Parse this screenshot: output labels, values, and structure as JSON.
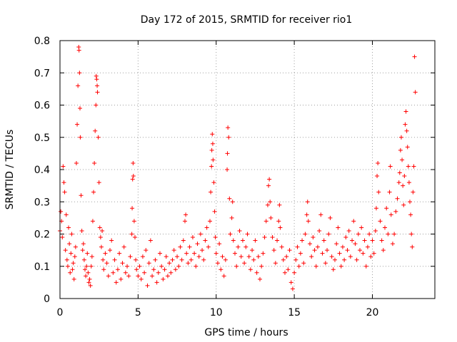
{
  "chart_data": {
    "type": "scatter",
    "title": "Day 172 of 2015, SRMTID for receiver rio1",
    "xlabel": "GPS time / hours",
    "ylabel": "SRMTID / TECUs",
    "xlim": [
      0,
      24
    ],
    "ylim": [
      0,
      0.8
    ],
    "xticks": [
      0,
      5,
      10,
      15,
      20
    ],
    "xtick_labels": [
      "0",
      "5",
      "10",
      "15",
      "20"
    ],
    "yticks": [
      0,
      0.1,
      0.2,
      0.3,
      0.4,
      0.5,
      0.6,
      0.7,
      0.8
    ],
    "ytick_labels": [
      "0",
      "0.1",
      "0.2",
      "0.3",
      "0.4",
      "0.5",
      "0.6",
      "0.7",
      "0.8"
    ],
    "grid": true,
    "marker": "+",
    "color": "#ff0000",
    "series": [
      {
        "name": "rio1",
        "points": [
          [
            0.0,
            0.21
          ],
          [
            0.05,
            0.27
          ],
          [
            0.1,
            0.24
          ],
          [
            0.15,
            0.19
          ],
          [
            0.2,
            0.41
          ],
          [
            0.25,
            0.36
          ],
          [
            0.3,
            0.33
          ],
          [
            0.35,
            0.15
          ],
          [
            0.4,
            0.26
          ],
          [
            0.45,
            0.12
          ],
          [
            0.5,
            0.1
          ],
          [
            0.55,
            0.22
          ],
          [
            0.6,
            0.17
          ],
          [
            0.65,
            0.08
          ],
          [
            0.7,
            0.14
          ],
          [
            0.75,
            0.2
          ],
          [
            0.8,
            0.09
          ],
          [
            0.85,
            0.11
          ],
          [
            0.9,
            0.06
          ],
          [
            0.95,
            0.13
          ],
          [
            1.0,
            0.16
          ],
          [
            1.05,
            0.42
          ],
          [
            1.1,
            0.54
          ],
          [
            1.15,
            0.66
          ],
          [
            1.2,
            0.78
          ],
          [
            1.22,
            0.77
          ],
          [
            1.25,
            0.7
          ],
          [
            1.28,
            0.59
          ],
          [
            1.3,
            0.5
          ],
          [
            1.35,
            0.32
          ],
          [
            1.4,
            0.21
          ],
          [
            1.45,
            0.15
          ],
          [
            1.5,
            0.17
          ],
          [
            1.55,
            0.12
          ],
          [
            1.6,
            0.09
          ],
          [
            1.65,
            0.07
          ],
          [
            1.7,
            0.1
          ],
          [
            1.75,
            0.14
          ],
          [
            1.8,
            0.08
          ],
          [
            1.85,
            0.05
          ],
          [
            1.9,
            0.06
          ],
          [
            1.95,
            0.04
          ],
          [
            2.0,
            0.1
          ],
          [
            2.05,
            0.13
          ],
          [
            2.1,
            0.24
          ],
          [
            2.15,
            0.33
          ],
          [
            2.2,
            0.42
          ],
          [
            2.25,
            0.52
          ],
          [
            2.3,
            0.6
          ],
          [
            2.32,
            0.69
          ],
          [
            2.35,
            0.68
          ],
          [
            2.38,
            0.66
          ],
          [
            2.4,
            0.64
          ],
          [
            2.45,
            0.5
          ],
          [
            2.5,
            0.36
          ],
          [
            2.55,
            0.22
          ],
          [
            2.6,
            0.19
          ],
          [
            2.65,
            0.16
          ],
          [
            2.7,
            0.21
          ],
          [
            2.75,
            0.12
          ],
          [
            2.8,
            0.09
          ],
          [
            2.9,
            0.14
          ],
          [
            3.0,
            0.11
          ],
          [
            3.1,
            0.07
          ],
          [
            3.2,
            0.15
          ],
          [
            3.3,
            0.18
          ],
          [
            3.4,
            0.08
          ],
          [
            3.5,
            0.12
          ],
          [
            3.6,
            0.05
          ],
          [
            3.7,
            0.09
          ],
          [
            3.8,
            0.14
          ],
          [
            3.9,
            0.06
          ],
          [
            4.0,
            0.11
          ],
          [
            4.1,
            0.16
          ],
          [
            4.2,
            0.08
          ],
          [
            4.3,
            0.1
          ],
          [
            4.4,
            0.07
          ],
          [
            4.5,
            0.13
          ],
          [
            4.6,
            0.2
          ],
          [
            4.62,
            0.28
          ],
          [
            4.65,
            0.37
          ],
          [
            4.68,
            0.42
          ],
          [
            4.7,
            0.38
          ],
          [
            4.75,
            0.24
          ],
          [
            4.8,
            0.19
          ],
          [
            4.85,
            0.12
          ],
          [
            4.9,
            0.09
          ],
          [
            5.0,
            0.07
          ],
          [
            5.1,
            0.1
          ],
          [
            5.2,
            0.06
          ],
          [
            5.3,
            0.13
          ],
          [
            5.4,
            0.08
          ],
          [
            5.5,
            0.15
          ],
          [
            5.6,
            0.04
          ],
          [
            5.7,
            0.11
          ],
          [
            5.8,
            0.18
          ],
          [
            5.9,
            0.07
          ],
          [
            6.0,
            0.09
          ],
          [
            6.1,
            0.12
          ],
          [
            6.2,
            0.05
          ],
          [
            6.3,
            0.08
          ],
          [
            6.4,
            0.14
          ],
          [
            6.5,
            0.1
          ],
          [
            6.6,
            0.06
          ],
          [
            6.7,
            0.09
          ],
          [
            6.8,
            0.13
          ],
          [
            6.9,
            0.07
          ],
          [
            7.0,
            0.11
          ],
          [
            7.1,
            0.08
          ],
          [
            7.2,
            0.12
          ],
          [
            7.3,
            0.15
          ],
          [
            7.4,
            0.09
          ],
          [
            7.5,
            0.13
          ],
          [
            7.6,
            0.1
          ],
          [
            7.7,
            0.16
          ],
          [
            7.8,
            0.12
          ],
          [
            7.9,
            0.18
          ],
          [
            8.0,
            0.24
          ],
          [
            8.05,
            0.26
          ],
          [
            8.1,
            0.14
          ],
          [
            8.2,
            0.11
          ],
          [
            8.3,
            0.16
          ],
          [
            8.4,
            0.12
          ],
          [
            8.5,
            0.19
          ],
          [
            8.6,
            0.14
          ],
          [
            8.7,
            0.1
          ],
          [
            8.8,
            0.17
          ],
          [
            8.9,
            0.13
          ],
          [
            9.0,
            0.2
          ],
          [
            9.1,
            0.15
          ],
          [
            9.2,
            0.12
          ],
          [
            9.3,
            0.18
          ],
          [
            9.4,
            0.22
          ],
          [
            9.5,
            0.16
          ],
          [
            9.6,
            0.24
          ],
          [
            9.65,
            0.33
          ],
          [
            9.7,
            0.41
          ],
          [
            9.72,
            0.46
          ],
          [
            9.75,
            0.51
          ],
          [
            9.78,
            0.48
          ],
          [
            9.8,
            0.43
          ],
          [
            9.85,
            0.36
          ],
          [
            9.9,
            0.27
          ],
          [
            9.95,
            0.19
          ],
          [
            10.0,
            0.14
          ],
          [
            10.1,
            0.11
          ],
          [
            10.2,
            0.17
          ],
          [
            10.3,
            0.09
          ],
          [
            10.4,
            0.13
          ],
          [
            10.5,
            0.07
          ],
          [
            10.6,
            0.12
          ],
          [
            10.7,
            0.4
          ],
          [
            10.72,
            0.45
          ],
          [
            10.75,
            0.53
          ],
          [
            10.8,
            0.5
          ],
          [
            10.85,
            0.31
          ],
          [
            10.9,
            0.2
          ],
          [
            11.0,
            0.25
          ],
          [
            11.05,
            0.3
          ],
          [
            11.1,
            0.18
          ],
          [
            11.2,
            0.14
          ],
          [
            11.3,
            0.1
          ],
          [
            11.4,
            0.16
          ],
          [
            11.5,
            0.21
          ],
          [
            11.6,
            0.13
          ],
          [
            11.7,
            0.18
          ],
          [
            11.8,
            0.11
          ],
          [
            11.9,
            0.16
          ],
          [
            12.0,
            0.2
          ],
          [
            12.1,
            0.13
          ],
          [
            12.2,
            0.09
          ],
          [
            12.3,
            0.15
          ],
          [
            12.4,
            0.12
          ],
          [
            12.5,
            0.18
          ],
          [
            12.6,
            0.08
          ],
          [
            12.7,
            0.13
          ],
          [
            12.8,
            0.06
          ],
          [
            12.9,
            0.1
          ],
          [
            13.0,
            0.14
          ],
          [
            13.1,
            0.19
          ],
          [
            13.2,
            0.24
          ],
          [
            13.3,
            0.29
          ],
          [
            13.35,
            0.35
          ],
          [
            13.4,
            0.37
          ],
          [
            13.45,
            0.3
          ],
          [
            13.5,
            0.25
          ],
          [
            13.6,
            0.19
          ],
          [
            13.7,
            0.15
          ],
          [
            13.8,
            0.11
          ],
          [
            13.9,
            0.18
          ],
          [
            14.0,
            0.24
          ],
          [
            14.05,
            0.29
          ],
          [
            14.1,
            0.22
          ],
          [
            14.2,
            0.16
          ],
          [
            14.3,
            0.12
          ],
          [
            14.4,
            0.08
          ],
          [
            14.5,
            0.13
          ],
          [
            14.6,
            0.09
          ],
          [
            14.7,
            0.15
          ],
          [
            14.8,
            0.05
          ],
          [
            14.9,
            0.03
          ],
          [
            15.0,
            0.08
          ],
          [
            15.1,
            0.12
          ],
          [
            15.2,
            0.16
          ],
          [
            15.3,
            0.1
          ],
          [
            15.4,
            0.14
          ],
          [
            15.5,
            0.18
          ],
          [
            15.6,
            0.11
          ],
          [
            15.7,
            0.2
          ],
          [
            15.8,
            0.26
          ],
          [
            15.85,
            0.3
          ],
          [
            15.9,
            0.24
          ],
          [
            16.0,
            0.17
          ],
          [
            16.1,
            0.13
          ],
          [
            16.2,
            0.19
          ],
          [
            16.3,
            0.15
          ],
          [
            16.4,
            0.1
          ],
          [
            16.5,
            0.16
          ],
          [
            16.6,
            0.21
          ],
          [
            16.7,
            0.26
          ],
          [
            16.8,
            0.14
          ],
          [
            16.9,
            0.18
          ],
          [
            17.0,
            0.11
          ],
          [
            17.1,
            0.15
          ],
          [
            17.2,
            0.2
          ],
          [
            17.3,
            0.25
          ],
          [
            17.4,
            0.13
          ],
          [
            17.5,
            0.09
          ],
          [
            17.6,
            0.12
          ],
          [
            17.7,
            0.17
          ],
          [
            17.8,
            0.22
          ],
          [
            17.9,
            0.14
          ],
          [
            18.0,
            0.1
          ],
          [
            18.1,
            0.16
          ],
          [
            18.2,
            0.12
          ],
          [
            18.3,
            0.19
          ],
          [
            18.4,
            0.15
          ],
          [
            18.5,
            0.21
          ],
          [
            18.6,
            0.13
          ],
          [
            18.7,
            0.18
          ],
          [
            18.8,
            0.24
          ],
          [
            18.9,
            0.17
          ],
          [
            19.0,
            0.12
          ],
          [
            19.1,
            0.2
          ],
          [
            19.2,
            0.15
          ],
          [
            19.3,
            0.22
          ],
          [
            19.4,
            0.14
          ],
          [
            19.5,
            0.18
          ],
          [
            19.6,
            0.1
          ],
          [
            19.7,
            0.16
          ],
          [
            19.8,
            0.2
          ],
          [
            19.9,
            0.13
          ],
          [
            20.0,
            0.18
          ],
          [
            20.1,
            0.14
          ],
          [
            20.2,
            0.21
          ],
          [
            20.25,
            0.28
          ],
          [
            20.3,
            0.38
          ],
          [
            20.35,
            0.42
          ],
          [
            20.4,
            0.33
          ],
          [
            20.5,
            0.24
          ],
          [
            20.6,
            0.18
          ],
          [
            20.7,
            0.15
          ],
          [
            20.8,
            0.22
          ],
          [
            20.9,
            0.28
          ],
          [
            21.0,
            0.2
          ],
          [
            21.1,
            0.33
          ],
          [
            21.15,
            0.41
          ],
          [
            21.2,
            0.26
          ],
          [
            21.3,
            0.17
          ],
          [
            21.4,
            0.2
          ],
          [
            21.5,
            0.27
          ],
          [
            21.6,
            0.31
          ],
          [
            21.7,
            0.36
          ],
          [
            21.75,
            0.39
          ],
          [
            21.8,
            0.46
          ],
          [
            21.85,
            0.5
          ],
          [
            21.9,
            0.43
          ],
          [
            21.95,
            0.35
          ],
          [
            22.0,
            0.29
          ],
          [
            22.05,
            0.38
          ],
          [
            22.1,
            0.54
          ],
          [
            22.15,
            0.58
          ],
          [
            22.2,
            0.52
          ],
          [
            22.25,
            0.47
          ],
          [
            22.3,
            0.41
          ],
          [
            22.35,
            0.36
          ],
          [
            22.4,
            0.3
          ],
          [
            22.45,
            0.26
          ],
          [
            22.5,
            0.2
          ],
          [
            22.55,
            0.16
          ],
          [
            22.6,
            0.33
          ],
          [
            22.65,
            0.41
          ],
          [
            22.7,
            0.75
          ],
          [
            22.75,
            0.64
          ]
        ]
      }
    ]
  }
}
